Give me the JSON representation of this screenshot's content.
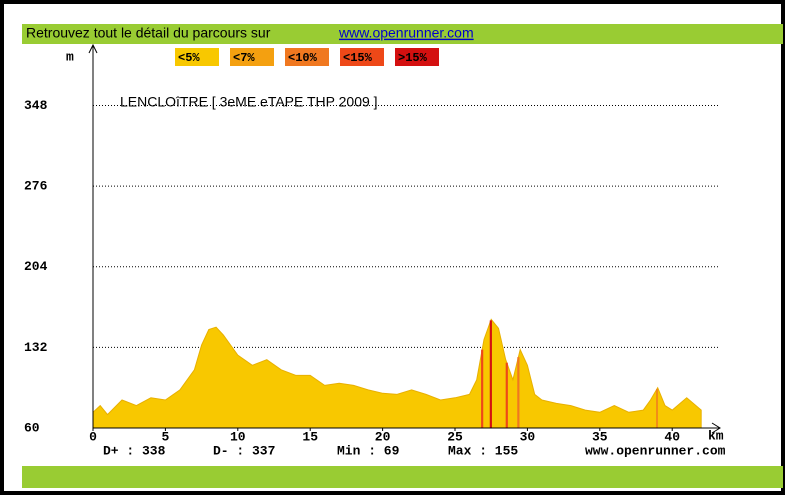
{
  "chart_data": {
    "type": "area",
    "header": "Retrouvez tout le détail du parcours sur",
    "header_link": "www.openrunner.com",
    "title": "LENCLOîTRE [ 3eME eTAPE THP 2009 ]",
    "y_label": "m",
    "x_label": "km",
    "legend": [
      {
        "name": "<5%",
        "color": "#f8c800"
      },
      {
        "name": "<7%",
        "color": "#f4a010"
      },
      {
        "name": "<10%",
        "color": "#f07820"
      },
      {
        "name": "<15%",
        "color": "#ee4818"
      },
      {
        "name": ">15%",
        "color": "#d41010"
      }
    ],
    "x": [
      0,
      0.5,
      1,
      2,
      3,
      4,
      5,
      6,
      7,
      7.5,
      8,
      8.5,
      9,
      10,
      11,
      12,
      13,
      14,
      15,
      16,
      17,
      18,
      19,
      20,
      21,
      22,
      23,
      24,
      25,
      26,
      26.5,
      27,
      27.5,
      28,
      28.5,
      29,
      29.5,
      30,
      30.5,
      31,
      32,
      33,
      34,
      35,
      36,
      37,
      38,
      38.5,
      39,
      39.5,
      40,
      41,
      42
    ],
    "values": [
      74,
      80,
      72,
      85,
      80,
      87,
      85,
      94,
      112,
      134,
      148,
      150,
      143,
      125,
      116,
      121,
      112,
      107,
      107,
      98,
      100,
      98,
      94,
      91,
      90,
      94,
      90,
      85,
      87,
      90,
      103,
      139,
      157,
      149,
      121,
      103,
      130,
      116,
      90,
      85,
      82,
      80,
      76,
      74,
      80,
      74,
      76,
      85,
      96,
      80,
      76,
      87,
      76
    ],
    "color": "#f8c800",
    "steep": [
      {
        "x0": 26.8,
        "x1": 26.95,
        "level": 3
      },
      {
        "x0": 27.4,
        "x1": 27.55,
        "level": 4
      },
      {
        "x0": 28.5,
        "x1": 28.65,
        "level": 3
      },
      {
        "x0": 29.3,
        "x1": 29.45,
        "level": 2
      },
      {
        "x0": 38.9,
        "x1": 39.0,
        "level": 2
      }
    ],
    "xlim": [
      0,
      43.3
    ],
    "ylim": [
      60,
      402
    ],
    "xticks": [
      0,
      5,
      10,
      15,
      20,
      25,
      30,
      35,
      40
    ],
    "yticks": [
      60,
      132,
      204,
      276,
      348
    ],
    "grid": true,
    "stats": [
      "D+ : 338",
      "D- : 337",
      "Min : 69",
      "Max : 155",
      "www.openrunner.com"
    ]
  }
}
